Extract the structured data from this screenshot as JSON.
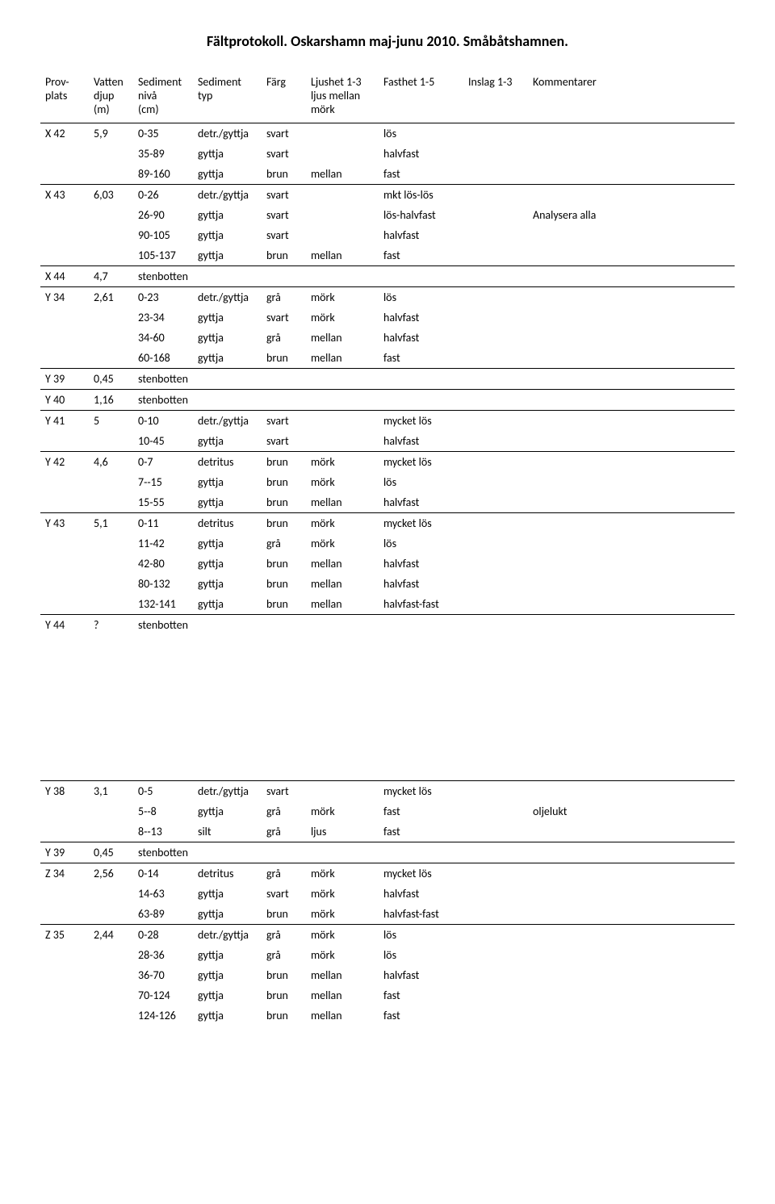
{
  "title": "Fältprotokoll. Oskarshamn maj-junu 2010. Småbåtshamnen.",
  "headers": {
    "provplats_l1": "Prov-",
    "provplats_l2": "plats",
    "vatten_l1": "Vatten",
    "vatten_l2": "djup (m)",
    "sediment_niva_l1": "Sediment",
    "sediment_niva_l2": "nivå",
    "sediment_niva_l3": "(cm)",
    "sediment_typ_l1": "Sediment",
    "sediment_typ_l2": "typ",
    "farg": "Färg",
    "ljushet_l1": "Ljushet 1-3",
    "ljushet_l2": "ljus  mellan",
    "ljushet_l3": "mörk",
    "fasthet": "Fasthet 1-5",
    "inslag": "Inslag  1-3",
    "kommentarer": "Kommentarer"
  },
  "rows_top": [
    {
      "first": true,
      "prov": "X 42",
      "djup": "5,9",
      "sed": "0-35",
      "typ": "detr./gyttja",
      "farg": "svart",
      "ljus": "",
      "fast": "lös",
      "insl": "",
      "komm": ""
    },
    {
      "first": false,
      "prov": "",
      "djup": "",
      "sed": "35-89",
      "typ": "gyttja",
      "farg": "svart",
      "ljus": "",
      "fast": "halvfast",
      "insl": "",
      "komm": ""
    },
    {
      "first": false,
      "prov": "",
      "djup": "",
      "sed": "89-160",
      "typ": "gyttja",
      "farg": "brun",
      "ljus": "mellan",
      "fast": "fast",
      "insl": "",
      "komm": ""
    },
    {
      "first": true,
      "prov": "X 43",
      "djup": "6,03",
      "sed": "0-26",
      "typ": "detr./gyttja",
      "farg": "svart",
      "ljus": "",
      "fast": "mkt lös-lös",
      "insl": "",
      "komm": ""
    },
    {
      "first": false,
      "prov": "",
      "djup": "",
      "sed": "26-90",
      "typ": "gyttja",
      "farg": "svart",
      "ljus": "",
      "fast": "lös-halvfast",
      "insl": "",
      "komm": "Analysera  alla"
    },
    {
      "first": false,
      "prov": "",
      "djup": "",
      "sed": "90-105",
      "typ": "gyttja",
      "farg": "svart",
      "ljus": "",
      "fast": "halvfast",
      "insl": "",
      "komm": ""
    },
    {
      "first": false,
      "prov": "",
      "djup": "",
      "sed": "105-137",
      "typ": "gyttja",
      "farg": "brun",
      "ljus": "mellan",
      "fast": "fast",
      "insl": "",
      "komm": ""
    },
    {
      "first": true,
      "prov": "X 44",
      "djup": "4,7",
      "sed": "stenbotten",
      "typ": "",
      "farg": "",
      "ljus": "",
      "fast": "",
      "insl": "",
      "komm": ""
    },
    {
      "first": true,
      "prov": "Y 34",
      "djup": "2,61",
      "sed": "0-23",
      "typ": "detr./gyttja",
      "farg": "grå",
      "ljus": "mörk",
      "fast": "lös",
      "insl": "",
      "komm": ""
    },
    {
      "first": false,
      "prov": "",
      "djup": "",
      "sed": "23-34",
      "typ": "gyttja",
      "farg": "svart",
      "ljus": "mörk",
      "fast": "halvfast",
      "insl": "",
      "komm": ""
    },
    {
      "first": false,
      "prov": "",
      "djup": "",
      "sed": "34-60",
      "typ": "gyttja",
      "farg": "grå",
      "ljus": "mellan",
      "fast": "halvfast",
      "insl": "",
      "komm": ""
    },
    {
      "first": false,
      "prov": "",
      "djup": "",
      "sed": "60-168",
      "typ": "gyttja",
      "farg": "brun",
      "ljus": "mellan",
      "fast": "fast",
      "insl": "",
      "komm": ""
    },
    {
      "first": true,
      "prov": "Y 39",
      "djup": "0,45",
      "sed": "stenbotten",
      "typ": "",
      "farg": "",
      "ljus": "",
      "fast": "",
      "insl": "",
      "komm": ""
    },
    {
      "first": true,
      "prov": "Y 40",
      "djup": "1,16",
      "sed": "stenbotten",
      "typ": "",
      "farg": "",
      "ljus": "",
      "fast": "",
      "insl": "",
      "komm": ""
    },
    {
      "first": true,
      "prov": "Y 41",
      "djup": "5",
      "sed": "0-10",
      "typ": "detr./gyttja",
      "farg": "svart",
      "ljus": "",
      "fast": "mycket lös",
      "insl": "",
      "komm": ""
    },
    {
      "first": false,
      "prov": "",
      "djup": "",
      "sed": "10-45",
      "typ": "gyttja",
      "farg": "svart",
      "ljus": "",
      "fast": "halvfast",
      "insl": "",
      "komm": ""
    },
    {
      "first": true,
      "prov": "Y 42",
      "djup": "4,6",
      "sed": "0-7",
      "typ": "detritus",
      "farg": "brun",
      "ljus": "mörk",
      "fast": "mycket lös",
      "insl": "",
      "komm": ""
    },
    {
      "first": false,
      "prov": "",
      "djup": "",
      "sed": "7--15",
      "typ": "gyttja",
      "farg": "brun",
      "ljus": "mörk",
      "fast": "lös",
      "insl": "",
      "komm": ""
    },
    {
      "first": false,
      "prov": "",
      "djup": "",
      "sed": "15-55",
      "typ": "gyttja",
      "farg": "brun",
      "ljus": "mellan",
      "fast": "halvfast",
      "insl": "",
      "komm": ""
    },
    {
      "first": true,
      "prov": "Y 43",
      "djup": "5,1",
      "sed": "0-11",
      "typ": "detritus",
      "farg": "brun",
      "ljus": "mörk",
      "fast": "mycket lös",
      "insl": "",
      "komm": ""
    },
    {
      "first": false,
      "prov": "",
      "djup": "",
      "sed": "11-42",
      "typ": "gyttja",
      "farg": "grå",
      "ljus": "mörk",
      "fast": "lös",
      "insl": "",
      "komm": ""
    },
    {
      "first": false,
      "prov": "",
      "djup": "",
      "sed": "42-80",
      "typ": "gyttja",
      "farg": "brun",
      "ljus": "mellan",
      "fast": "halvfast",
      "insl": "",
      "komm": ""
    },
    {
      "first": false,
      "prov": "",
      "djup": "",
      "sed": "80-132",
      "typ": "gyttja",
      "farg": "brun",
      "ljus": "mellan",
      "fast": "halvfast",
      "insl": "",
      "komm": ""
    },
    {
      "first": false,
      "prov": "",
      "djup": "",
      "sed": "132-141",
      "typ": "gyttja",
      "farg": "brun",
      "ljus": "mellan",
      "fast": "halvfast-fast",
      "insl": "",
      "komm": ""
    },
    {
      "first": true,
      "prov": "Y 44",
      "djup": "?",
      "sed": "stenbotten",
      "typ": "",
      "farg": "",
      "ljus": "",
      "fast": "",
      "insl": "",
      "komm": ""
    }
  ],
  "rows_bottom": [
    {
      "first": true,
      "prov": "Y 38",
      "djup": "3,1",
      "sed": "0-5",
      "typ": "detr./gyttja",
      "farg": "svart",
      "ljus": "",
      "fast": "mycket lös",
      "insl": "",
      "komm": ""
    },
    {
      "first": false,
      "prov": "",
      "djup": "",
      "sed": "5--8",
      "typ": "gyttja",
      "farg": "grå",
      "ljus": "mörk",
      "fast": "fast",
      "insl": "",
      "komm": "oljelukt"
    },
    {
      "first": false,
      "prov": "",
      "djup": "",
      "sed": "8--13",
      "typ": "silt",
      "farg": "grå",
      "ljus": "ljus",
      "fast": "fast",
      "insl": "",
      "komm": ""
    },
    {
      "first": true,
      "prov": "Y 39",
      "djup": "0,45",
      "sed": "stenbotten",
      "typ": "",
      "farg": "",
      "ljus": "",
      "fast": "",
      "insl": "",
      "komm": ""
    },
    {
      "first": true,
      "prov": "Z 34",
      "djup": "2,56",
      "sed": "0-14",
      "typ": "detritus",
      "farg": "grå",
      "ljus": "mörk",
      "fast": "mycket lös",
      "insl": "",
      "komm": ""
    },
    {
      "first": false,
      "prov": "",
      "djup": "",
      "sed": "14-63",
      "typ": "gyttja",
      "farg": "svart",
      "ljus": "mörk",
      "fast": "halvfast",
      "insl": "",
      "komm": ""
    },
    {
      "first": false,
      "prov": "",
      "djup": "",
      "sed": "63-89",
      "typ": "gyttja",
      "farg": "brun",
      "ljus": "mörk",
      "fast": "halvfast-fast",
      "insl": "",
      "komm": ""
    },
    {
      "first": true,
      "prov": "Z 35",
      "djup": "2,44",
      "sed": "0-28",
      "typ": "detr./gyttja",
      "farg": "grå",
      "ljus": "mörk",
      "fast": "lös",
      "insl": "",
      "komm": ""
    },
    {
      "first": false,
      "prov": "",
      "djup": "",
      "sed": "28-36",
      "typ": "gyttja",
      "farg": "grå",
      "ljus": "mörk",
      "fast": "lös",
      "insl": "",
      "komm": ""
    },
    {
      "first": false,
      "prov": "",
      "djup": "",
      "sed": "36-70",
      "typ": "gyttja",
      "farg": "brun",
      "ljus": "mellan",
      "fast": "halvfast",
      "insl": "",
      "komm": ""
    },
    {
      "first": false,
      "prov": "",
      "djup": "",
      "sed": "70-124",
      "typ": "gyttja",
      "farg": "brun",
      "ljus": "mellan",
      "fast": "fast",
      "insl": "",
      "komm": ""
    },
    {
      "first": false,
      "prov": "",
      "djup": "",
      "sed": "124-126",
      "typ": "gyttja",
      "farg": "brun",
      "ljus": "mellan",
      "fast": "fast",
      "insl": "",
      "komm": ""
    }
  ]
}
